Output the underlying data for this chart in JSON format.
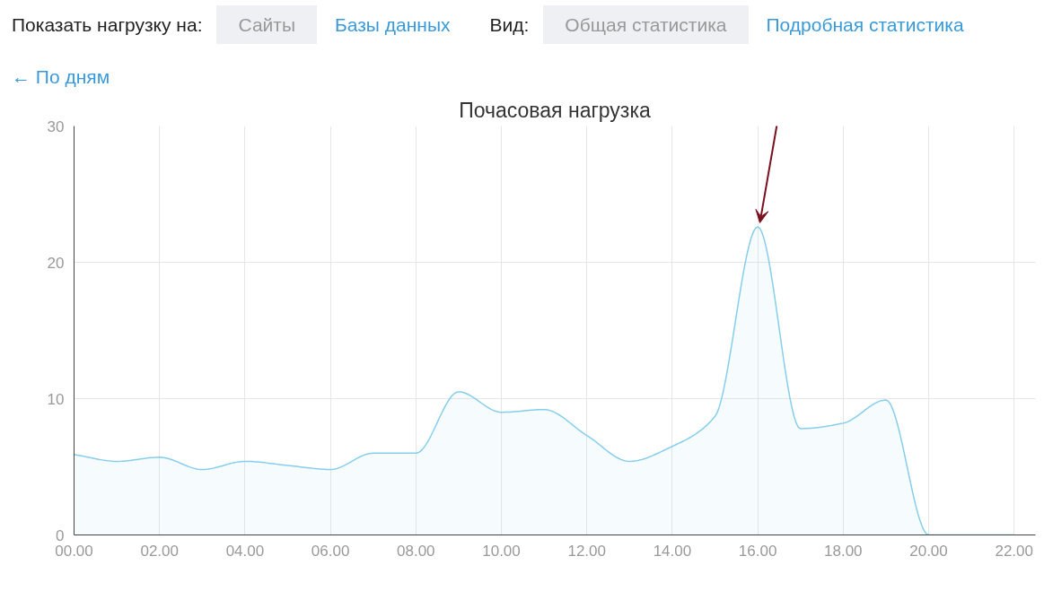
{
  "chart_data": {
    "type": "area",
    "title": "Почасовая нагрузка",
    "annotations": [
      "Показать нагрузку на:",
      "Сайты",
      "Базы данных",
      "Вид:",
      "Общая статистика",
      "Подробная статистика",
      "← По дням"
    ],
    "x": [
      0,
      1,
      2,
      3,
      4,
      5,
      6,
      7,
      8,
      9,
      10,
      11,
      12,
      13,
      14,
      15,
      16,
      17,
      18,
      19,
      20,
      21,
      22
    ],
    "series": [
      {
        "color": "#87ceeb",
        "values": [
          5.9,
          5.4,
          5.7,
          4.8,
          5.4,
          5.1,
          4.8,
          6.0,
          6.0,
          10.5,
          9.0,
          9.2,
          7.3,
          5.4,
          6.5,
          8.7,
          22.6,
          7.8,
          8.2,
          9.9,
          0,
          0,
          0
        ]
      }
    ],
    "xlim": [
      0,
      22.5
    ],
    "ylim": [
      0,
      30
    ],
    "xticks": [
      {
        "value": 0,
        "label": "00.00"
      },
      {
        "value": 2,
        "label": "02.00"
      },
      {
        "value": 4,
        "label": "04.00"
      },
      {
        "value": 6,
        "label": "06.00"
      },
      {
        "value": 8,
        "label": "08.00"
      },
      {
        "value": 10,
        "label": "10.00"
      },
      {
        "value": 12,
        "label": "12.00"
      },
      {
        "value": 14,
        "label": "14.00"
      },
      {
        "value": 16,
        "label": "16.00"
      },
      {
        "value": 18,
        "label": "18.00"
      },
      {
        "value": 20,
        "label": "20.00"
      },
      {
        "value": 22,
        "label": "22.00"
      }
    ],
    "yticks": [
      0,
      10,
      20,
      30
    ],
    "grid": true
  }
}
